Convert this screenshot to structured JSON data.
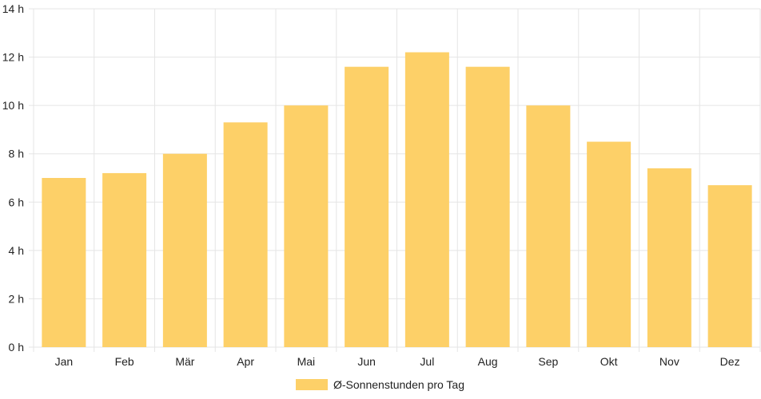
{
  "chart_data": {
    "type": "bar",
    "categories": [
      "Jan",
      "Feb",
      "Mär",
      "Apr",
      "Mai",
      "Jun",
      "Jul",
      "Aug",
      "Sep",
      "Okt",
      "Nov",
      "Dez"
    ],
    "series": [
      {
        "name": "Ø-Sonnenstunden pro Tag",
        "values": [
          7.0,
          7.2,
          8.0,
          9.3,
          10.0,
          11.6,
          12.2,
          11.6,
          10.0,
          8.5,
          7.4,
          6.7
        ]
      }
    ],
    "ylim": [
      0,
      14
    ],
    "yticks": [
      0,
      2,
      4,
      6,
      8,
      10,
      12,
      14
    ],
    "ytick_labels": [
      "0 h",
      "2 h",
      "4 h",
      "6 h",
      "8 h",
      "10 h",
      "12 h",
      "14 h"
    ],
    "grid": true,
    "legend_position": "bottom-center",
    "colors": {
      "bar": "#fdd068",
      "grid": "#e5e5e5",
      "text": "#222222"
    }
  }
}
